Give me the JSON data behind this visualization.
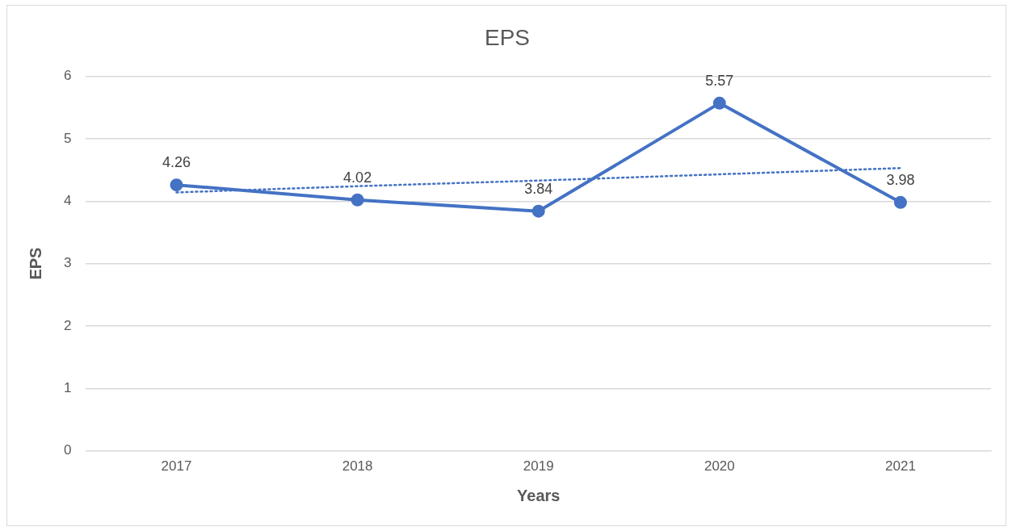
{
  "chart_data": {
    "type": "line",
    "title": "EPS",
    "xlabel": "Years",
    "ylabel": "EPS",
    "categories": [
      "2017",
      "2018",
      "2019",
      "2020",
      "2021"
    ],
    "series": [
      {
        "name": null,
        "color": "#4472c4",
        "values": [
          4.26,
          4.02,
          3.84,
          5.57,
          3.98
        ],
        "value_labels": [
          "4.26",
          "4.02",
          "3.84",
          "5.57",
          "3.98"
        ],
        "marker": "circle",
        "line_style": "solid"
      },
      {
        "type": "line",
        "color": "#4472c4",
        "values": [
          4.14,
          4.24,
          4.33,
          4.43,
          4.53
        ],
        "marker": "none",
        "line_style": "dotted"
      }
    ],
    "ylim": [
      0,
      6
    ],
    "yticks": [
      0,
      1,
      2,
      3,
      4,
      5,
      6
    ],
    "grid": "y",
    "legend": false
  }
}
